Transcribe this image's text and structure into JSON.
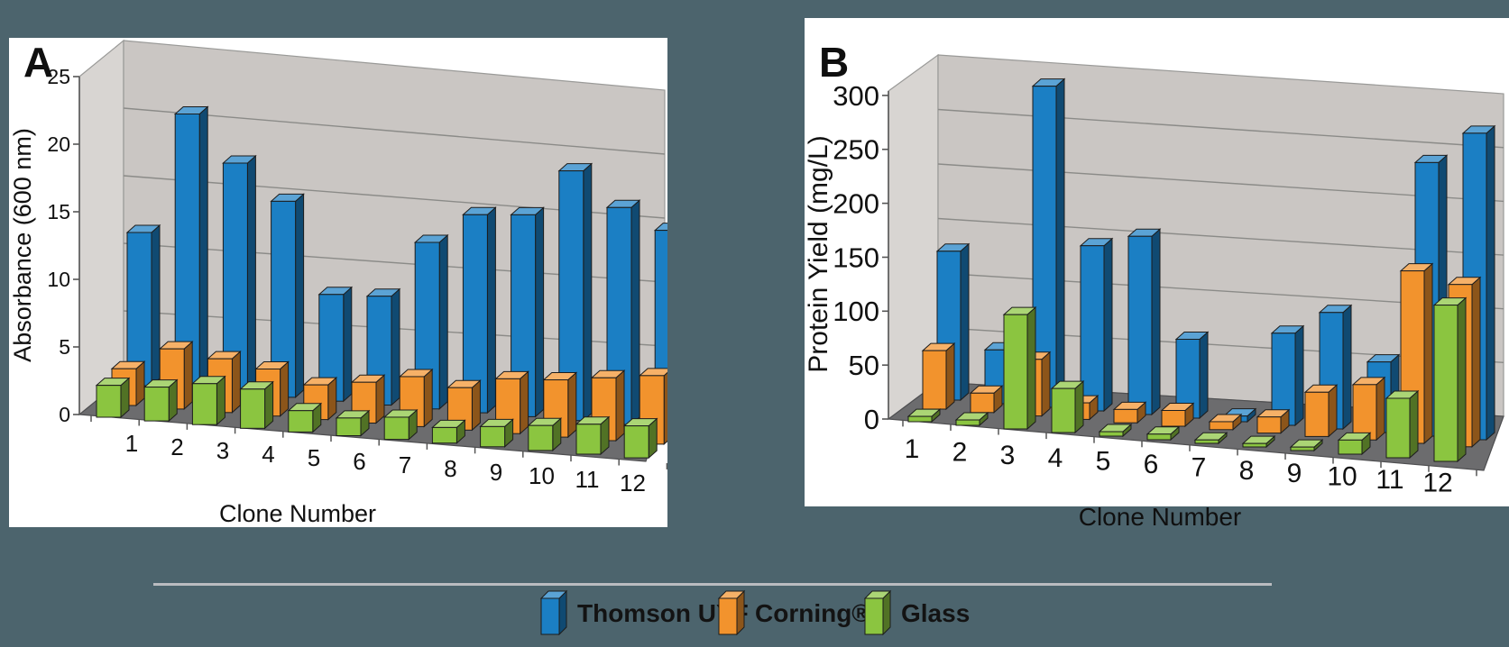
{
  "figure": {
    "background_color": "#4c646d",
    "panel_color": "#ffffff",
    "back_wall_color": "#cac6c3",
    "side_wall_color": "#d8d5d2",
    "floor_color": "#6c6c6e",
    "gridline_color": "#8b8b88",
    "divider_color": "#babcc0",
    "text_color": "#111111"
  },
  "panels": [
    {
      "label": "A"
    },
    {
      "label": "B"
    }
  ],
  "legend": {
    "items": [
      {
        "label": "Thomson UYF",
        "color": "#1b7fc4"
      },
      {
        "label": "Corning®",
        "color": "#f2932d"
      },
      {
        "label": "Glass",
        "color": "#8bc540"
      }
    ]
  },
  "chart_data": [
    {
      "type": "bar",
      "style": "3d-grouped",
      "title": "A",
      "xlabel": "Clone Number",
      "ylabel": "Absorbance (600 nm)",
      "ylim": [
        0,
        25
      ],
      "yticks": [
        0,
        5,
        10,
        15,
        20,
        25
      ],
      "grid": true,
      "legend_position": "shared-bottom",
      "categories": [
        "1",
        "2",
        "3",
        "4",
        "5",
        "6",
        "7",
        "8",
        "9",
        "10",
        "11",
        "12"
      ],
      "series": [
        {
          "name": "Thomson UYF",
          "color": "#1b7fc4",
          "values": [
            12.5,
            22,
            18,
            15,
            8,
            8,
            12,
            14,
            14,
            17,
            14.5,
            13
          ]
        },
        {
          "name": "Corning®",
          "color": "#f2932d",
          "values": [
            3,
            4.8,
            4.2,
            3.6,
            2.6,
            3,
            3.6,
            3,
            3.8,
            3.9,
            4.2,
            4.5
          ]
        },
        {
          "name": "Glass",
          "color": "#8bc540",
          "values": [
            2.6,
            2.7,
            3.2,
            3,
            1.6,
            1.3,
            1.6,
            1.1,
            1.4,
            1.7,
            2,
            2.1
          ]
        }
      ]
    },
    {
      "type": "bar",
      "style": "3d-grouped",
      "title": "B",
      "xlabel": "Clone Number",
      "ylabel": "Protein Yield (mg/L)",
      "ylim": [
        0,
        300
      ],
      "yticks": [
        0,
        50,
        100,
        150,
        200,
        250,
        300
      ],
      "grid": true,
      "legend_position": "shared-bottom",
      "categories": [
        "1",
        "2",
        "3",
        "4",
        "5",
        "6",
        "7",
        "8",
        "9",
        "10",
        "11",
        "12"
      ],
      "series": [
        {
          "name": "Thomson UYF",
          "color": "#1b7fc4",
          "values": [
            140,
            50,
            295,
            150,
            160,
            70,
            5,
            80,
            100,
            60,
            230,
            255
          ]
        },
        {
          "name": "Corning®",
          "color": "#f2932d",
          "values": [
            55,
            18,
            52,
            15,
            12,
            14,
            7,
            14,
            38,
            47,
            145,
            135
          ]
        },
        {
          "name": "Glass",
          "color": "#8bc540",
          "values": [
            5,
            5,
            105,
            40,
            4,
            5,
            3,
            3,
            3,
            12,
            50,
            130
          ]
        }
      ]
    }
  ]
}
